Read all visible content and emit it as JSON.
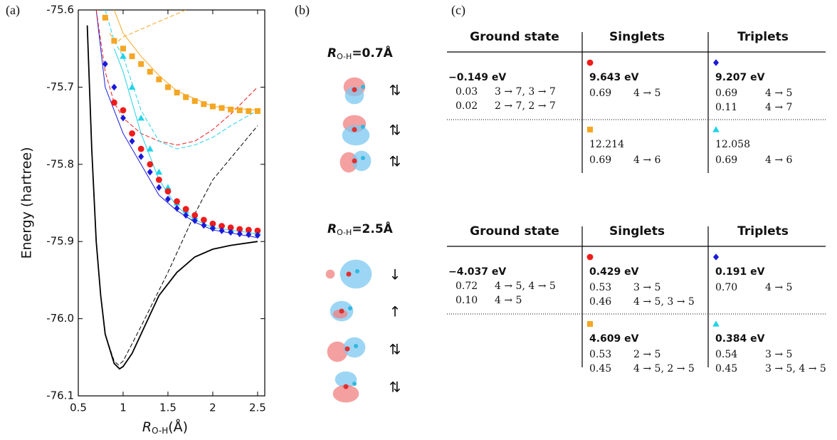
{
  "panel_labels": [
    "(a)",
    "(b)",
    "(c)"
  ],
  "chart_data": {
    "type": "line",
    "ylabel": "Energy (hartree)",
    "xlabel": {
      "main": "R",
      "sub": "O-H",
      "rest": "(Å)"
    },
    "xlim": [
      0.5,
      2.58
    ],
    "ylim": [
      -76.1,
      -75.6
    ],
    "xticks": [
      0.5,
      1,
      1.5,
      2,
      2.5
    ],
    "yticks": [
      -76.1,
      {
        "value": -76,
        "label": "-76.0"
      },
      -75.9,
      -75.8,
      -75.7,
      -75.6
    ],
    "series": [
      {
        "color": "#000000",
        "style": "solid",
        "width": 1.8,
        "x": [
          0.6,
          0.65,
          0.7,
          0.75,
          0.8,
          0.9,
          0.96,
          1.0,
          1.1,
          1.2,
          1.3,
          1.4,
          1.6,
          1.8,
          2.0,
          2.2,
          2.5
        ],
        "values": [
          -75.62,
          -75.78,
          -75.9,
          -75.97,
          -76.02,
          -76.058,
          -76.065,
          -76.062,
          -76.045,
          -76.02,
          -75.995,
          -75.97,
          -75.94,
          -75.92,
          -75.91,
          -75.905,
          -75.9
        ]
      },
      {
        "color": "#000000",
        "style": "dashed",
        "width": 1,
        "x": [
          0.6,
          0.65,
          0.7,
          0.75,
          0.8,
          0.9,
          0.95,
          1.0,
          1.2,
          1.5,
          1.8,
          2.0,
          2.5
        ],
        "values": [
          -75.62,
          -75.78,
          -75.9,
          -75.97,
          -76.02,
          -76.055,
          -76.06,
          -76.055,
          -76.01,
          -75.94,
          -75.864,
          -75.82,
          -75.75
        ]
      },
      {
        "color": "#1a1adb",
        "style": "solid",
        "width": 1,
        "x": [
          0.7,
          0.8,
          0.9,
          1.0,
          1.2,
          1.4,
          1.6,
          1.8,
          2.0,
          2.5
        ],
        "values": [
          -75.6,
          -75.7,
          -75.73,
          -75.76,
          -75.8,
          -75.84,
          -75.86,
          -75.875,
          -75.885,
          -75.895
        ]
      },
      {
        "color": "#ee1c1c",
        "style": "dashed",
        "width": 1,
        "x": [
          0.7,
          0.8,
          0.9,
          1.0,
          1.2,
          1.4,
          1.6,
          1.8,
          2.0,
          2.2,
          2.5
        ],
        "values": [
          -75.6,
          -75.68,
          -75.72,
          -75.74,
          -75.76,
          -75.77,
          -75.775,
          -75.77,
          -75.755,
          -75.735,
          -75.7
        ]
      },
      {
        "color": "#22d3e6",
        "style": "dashed",
        "width": 1,
        "x": [
          0.8,
          0.9,
          1.0,
          1.2,
          1.4,
          1.6,
          1.8,
          2.0,
          2.2,
          2.5
        ],
        "values": [
          -75.6,
          -75.64,
          -75.66,
          -75.73,
          -75.77,
          -75.78,
          -75.775,
          -75.765,
          -75.75,
          -75.73
        ]
      },
      {
        "color": "#22d3e6",
        "style": "solid",
        "width": 1,
        "x": [
          0.9,
          1.0,
          1.2,
          1.4,
          1.6,
          1.8,
          2.0,
          2.5
        ],
        "values": [
          -75.65,
          -75.68,
          -75.76,
          -75.82,
          -75.855,
          -75.872,
          -75.882,
          -75.89
        ]
      },
      {
        "color": "#f5a623",
        "style": "dashed",
        "width": 1,
        "x": [
          0.85,
          0.9,
          0.95,
          1.0,
          1.2,
          1.4,
          1.6,
          1.7
        ],
        "values": [
          -75.63,
          -75.64,
          -75.64,
          -75.635,
          -75.625,
          -75.615,
          -75.605,
          -75.6
        ]
      },
      {
        "color": "#f5a623",
        "style": "solid",
        "width": 1,
        "x": [
          0.9,
          1.0,
          1.2,
          1.4,
          1.6,
          2.0,
          2.5
        ],
        "values": [
          -75.6,
          -75.63,
          -75.66,
          -75.685,
          -75.705,
          -75.725,
          -75.73
        ]
      },
      {
        "color": "#f5a623",
        "style": "markers",
        "marker": "square",
        "x": [
          0.8,
          0.9,
          1.0,
          1.1,
          1.2,
          1.3,
          1.4,
          1.5,
          1.6,
          1.7,
          1.8,
          1.9,
          2.0,
          2.1,
          2.2,
          2.3,
          2.4,
          2.5
        ],
        "values": [
          -75.61,
          -75.64,
          -75.65,
          -75.66,
          -75.67,
          -75.68,
          -75.69,
          -75.7,
          -75.707,
          -75.713,
          -75.718,
          -75.722,
          -75.725,
          -75.727,
          -75.729,
          -75.73,
          -75.731,
          -75.731
        ]
      },
      {
        "color": "#22d3e6",
        "style": "markers",
        "marker": "triangle",
        "x": [
          1.0,
          1.1,
          1.2,
          1.3,
          1.4,
          1.5,
          1.6,
          1.7,
          1.8,
          2.0,
          2.2,
          2.5
        ],
        "values": [
          -75.66,
          -75.7,
          -75.74,
          -75.78,
          -75.81,
          -75.83,
          -75.85,
          -75.86,
          -75.868,
          -75.88,
          -75.885,
          -75.888
        ]
      },
      {
        "color": "#ee1c1c",
        "style": "markers",
        "marker": "circle",
        "x": [
          0.9,
          1.0,
          1.1,
          1.2,
          1.3,
          1.4,
          1.5,
          1.6,
          1.7,
          1.8,
          1.9,
          2.0,
          2.1,
          2.2,
          2.3,
          2.4,
          2.5
        ],
        "values": [
          -75.72,
          -75.73,
          -75.76,
          -75.78,
          -75.8,
          -75.82,
          -75.835,
          -75.848,
          -75.858,
          -75.866,
          -75.872,
          -75.877,
          -75.88,
          -75.882,
          -75.884,
          -75.885,
          -75.886
        ]
      },
      {
        "color": "#1a1adb",
        "style": "markers",
        "marker": "diamond",
        "x": [
          0.8,
          0.9,
          1.0,
          1.1,
          1.2,
          1.3,
          1.4,
          1.5,
          1.6,
          1.7,
          1.8,
          1.9,
          2.0,
          2.1,
          2.2,
          2.3,
          2.4,
          2.5
        ],
        "values": [
          -75.67,
          -75.7,
          -75.74,
          -75.77,
          -75.79,
          -75.81,
          -75.83,
          -75.845,
          -75.857,
          -75.866,
          -75.873,
          -75.879,
          -75.883,
          -75.886,
          -75.888,
          -75.89,
          -75.891,
          -75.892
        ]
      }
    ]
  },
  "orbitals": [
    {
      "label": {
        "main": "R",
        "sub": "O-H",
        "rest": "=0.7Å"
      },
      "occupations": [
        "⇅",
        "⇅",
        "⇅"
      ]
    },
    {
      "label": {
        "main": "R",
        "sub": "O-H",
        "rest": "=2.5Å"
      },
      "occupations": [
        "↓",
        "↑",
        "⇅",
        "⇅"
      ]
    }
  ],
  "tables": [
    {
      "headers": [
        "Ground state",
        "Singlets",
        "Triplets"
      ],
      "ground": {
        "energy": "−0.149 eV",
        "rows": [
          [
            "0.03",
            "3 → 7, 3 → 7"
          ],
          [
            "0.02",
            "2 → 7, 2 → 7"
          ]
        ]
      },
      "singlets": [
        {
          "marker": "circle",
          "color": "#ee1c1c",
          "energy": "9.643 eV",
          "bold": true,
          "rows": [
            [
              "0.69",
              "4 → 5"
            ]
          ]
        },
        {
          "marker": "square",
          "color": "#f5a623",
          "energy": "12.214",
          "bold": false,
          "rows": [
            [
              "0.69",
              "4 → 6"
            ]
          ]
        }
      ],
      "triplets": [
        {
          "marker": "diamond",
          "color": "#1a1adb",
          "energy": "9.207 eV",
          "bold": true,
          "rows": [
            [
              "0.69",
              "4 → 5"
            ],
            [
              "0.11",
              "4 → 7"
            ]
          ]
        },
        {
          "marker": "triangle",
          "color": "#22d3e6",
          "energy": "12.058",
          "bold": false,
          "rows": [
            [
              "0.69",
              "4 → 6"
            ]
          ]
        }
      ]
    },
    {
      "headers": [
        "Ground state",
        "Singlets",
        "Triplets"
      ],
      "ground": {
        "energy": "−4.037 eV",
        "rows": [
          [
            "0.72",
            "4 → 5, 4 → 5"
          ],
          [
            "0.10",
            "4 → 5"
          ]
        ]
      },
      "singlets": [
        {
          "marker": "circle",
          "color": "#ee1c1c",
          "energy": "0.429 eV",
          "bold": true,
          "rows": [
            [
              "0.53",
              "3 → 5"
            ],
            [
              "0.46",
              "4 → 5, 3 → 5"
            ]
          ]
        },
        {
          "marker": "square",
          "color": "#f5a623",
          "energy": "4.609 eV",
          "bold": true,
          "rows": [
            [
              "0.53",
              "2 → 5"
            ],
            [
              "0.45",
              "4 → 5, 2 → 5"
            ]
          ]
        }
      ],
      "triplets": [
        {
          "marker": "diamond",
          "color": "#1a1adb",
          "energy": "0.191 eV",
          "bold": true,
          "rows": [
            [
              "0.70",
              "4 → 5"
            ]
          ]
        },
        {
          "marker": "triangle",
          "color": "#22d3e6",
          "energy": "0.384 eV",
          "bold": true,
          "rows": [
            [
              "0.54",
              "3 → 5"
            ],
            [
              "0.45",
              "3 → 5, 4 → 5"
            ]
          ]
        }
      ]
    }
  ]
}
